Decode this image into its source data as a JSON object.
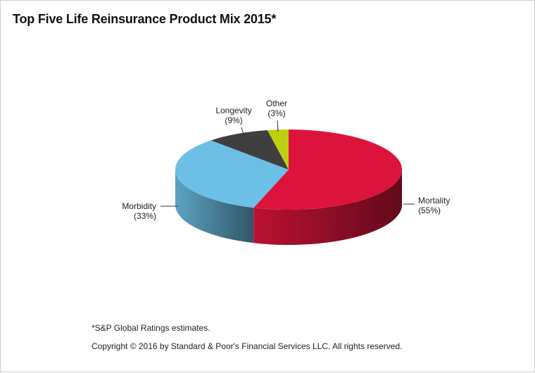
{
  "chart_data": {
    "type": "pie",
    "title": "Top Five Life Reinsurance Product Mix 2015*",
    "slices": [
      {
        "name": "Mortality",
        "value": 55,
        "label": "(55%)",
        "color": "#DC143C"
      },
      {
        "name": "Morbidity",
        "value": 33,
        "label": "(33%)",
        "color": "#6CC0E5"
      },
      {
        "name": "Longevity",
        "value": 9,
        "label": "(9%)",
        "color": "#3F3F3F"
      },
      {
        "name": "Other",
        "value": 3,
        "label": "(3%)",
        "color": "#BCCF10"
      }
    ],
    "start_angle_deg": 90,
    "direction": "clockwise",
    "style": "3d"
  },
  "footnote": "*S&P Global Ratings estimates.",
  "copyright": "Copyright © 2016 by Standard & Poor's Financial Services LLC. All rights reserved."
}
